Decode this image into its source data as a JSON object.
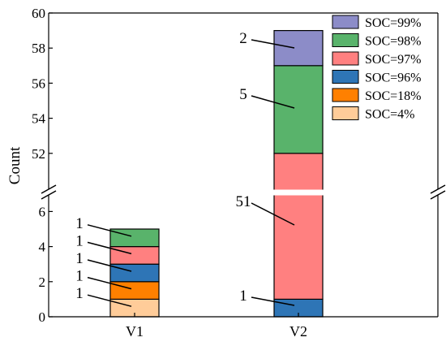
{
  "chart_data": {
    "type": "bar",
    "stacked": true,
    "broken_y_axis": true,
    "ylabel": "Count",
    "xlabel": "",
    "categories": [
      "V1",
      "V2"
    ],
    "ylim_lower": [
      0,
      7
    ],
    "ylim_upper": [
      50,
      60
    ],
    "yticks_lower": [
      0,
      2,
      4,
      6
    ],
    "yticks_upper": [
      52,
      54,
      56,
      58,
      60
    ],
    "series": [
      {
        "name": "SOC=4%",
        "color": "#FFCC99",
        "values": [
          1,
          0
        ],
        "labels": [
          "1",
          ""
        ]
      },
      {
        "name": "SOC=18%",
        "color": "#FF8000",
        "values": [
          1,
          0
        ],
        "labels": [
          "1",
          ""
        ]
      },
      {
        "name": "SOC=96%",
        "color": "#2E75B6",
        "values": [
          1,
          1
        ],
        "labels": [
          "1",
          "1"
        ]
      },
      {
        "name": "SOC=97%",
        "color": "#FF8080",
        "values": [
          1,
          51
        ],
        "labels": [
          "1",
          "51"
        ]
      },
      {
        "name": "SOC=98%",
        "color": "#59B36B",
        "values": [
          1,
          5
        ],
        "labels": [
          "1",
          "5"
        ]
      },
      {
        "name": "SOC=99%",
        "color": "#8C8CC8",
        "values": [
          0,
          2
        ],
        "labels": [
          "",
          "2"
        ]
      }
    ],
    "legend_order": [
      "SOC=99%",
      "SOC=98%",
      "SOC=97%",
      "SOC=96%",
      "SOC=18%",
      "SOC=4%"
    ],
    "legend_position": "top-right",
    "grid": false
  }
}
